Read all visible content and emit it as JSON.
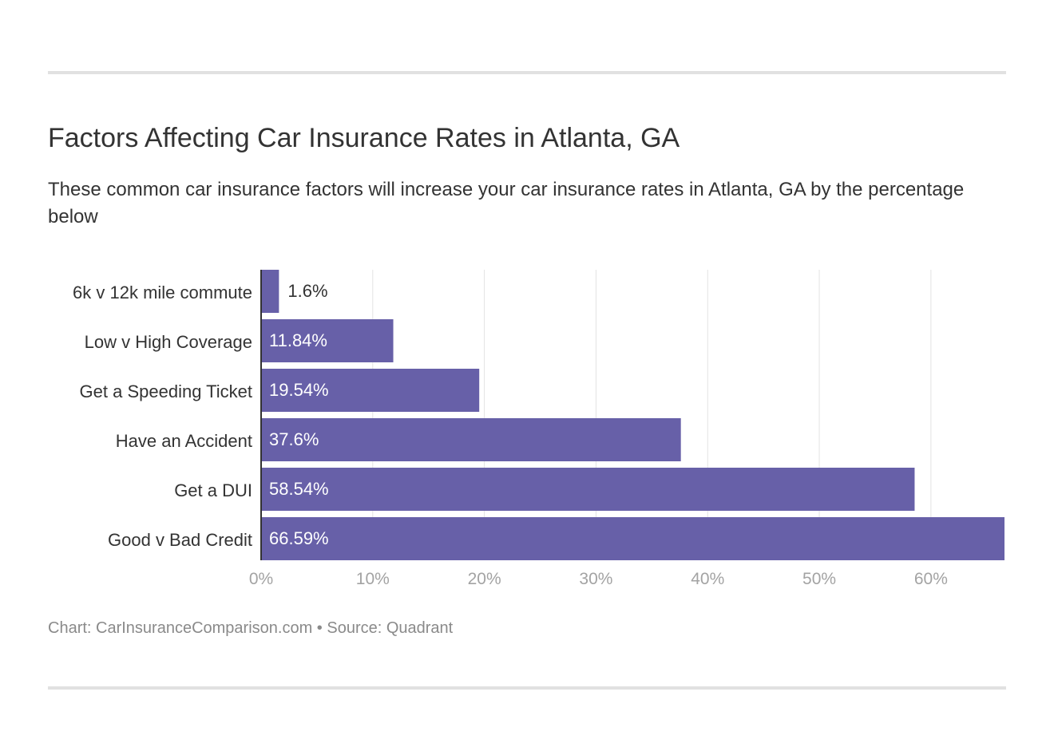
{
  "header": {
    "title": "Factors Affecting Car Insurance Rates in Atlanta, GA",
    "subtitle": "These common car insurance factors will increase your car insurance rates in Atlanta, GA by the percentage below"
  },
  "footer": {
    "credit": "Chart: CarInsuranceComparison.com • Source: Quadrant"
  },
  "colors": {
    "bar": "#6760a8",
    "grid": "#e3e3e3",
    "axis": "#333333",
    "tick_label": "#a3a3a3",
    "label_inside": "#ffffff",
    "label_outside": "#333333"
  },
  "chart_data": {
    "type": "bar",
    "orientation": "horizontal",
    "categories": [
      "6k v 12k mile commute",
      "Low v High Coverage",
      "Get a Speeding Ticket",
      "Have an Accident",
      "Get a DUI",
      "Good v Bad Credit"
    ],
    "values": [
      1.6,
      11.84,
      19.54,
      37.6,
      58.54,
      66.59
    ],
    "value_labels": [
      "1.6%",
      "11.84%",
      "19.54%",
      "37.6%",
      "58.54%",
      "66.59%"
    ],
    "x_ticks": [
      0,
      10,
      20,
      30,
      40,
      50,
      60
    ],
    "x_tick_labels": [
      "0%",
      "10%",
      "20%",
      "30%",
      "40%",
      "50%",
      "60%"
    ],
    "xlim": [
      0,
      66.59
    ],
    "grid": true,
    "legend": "none"
  }
}
